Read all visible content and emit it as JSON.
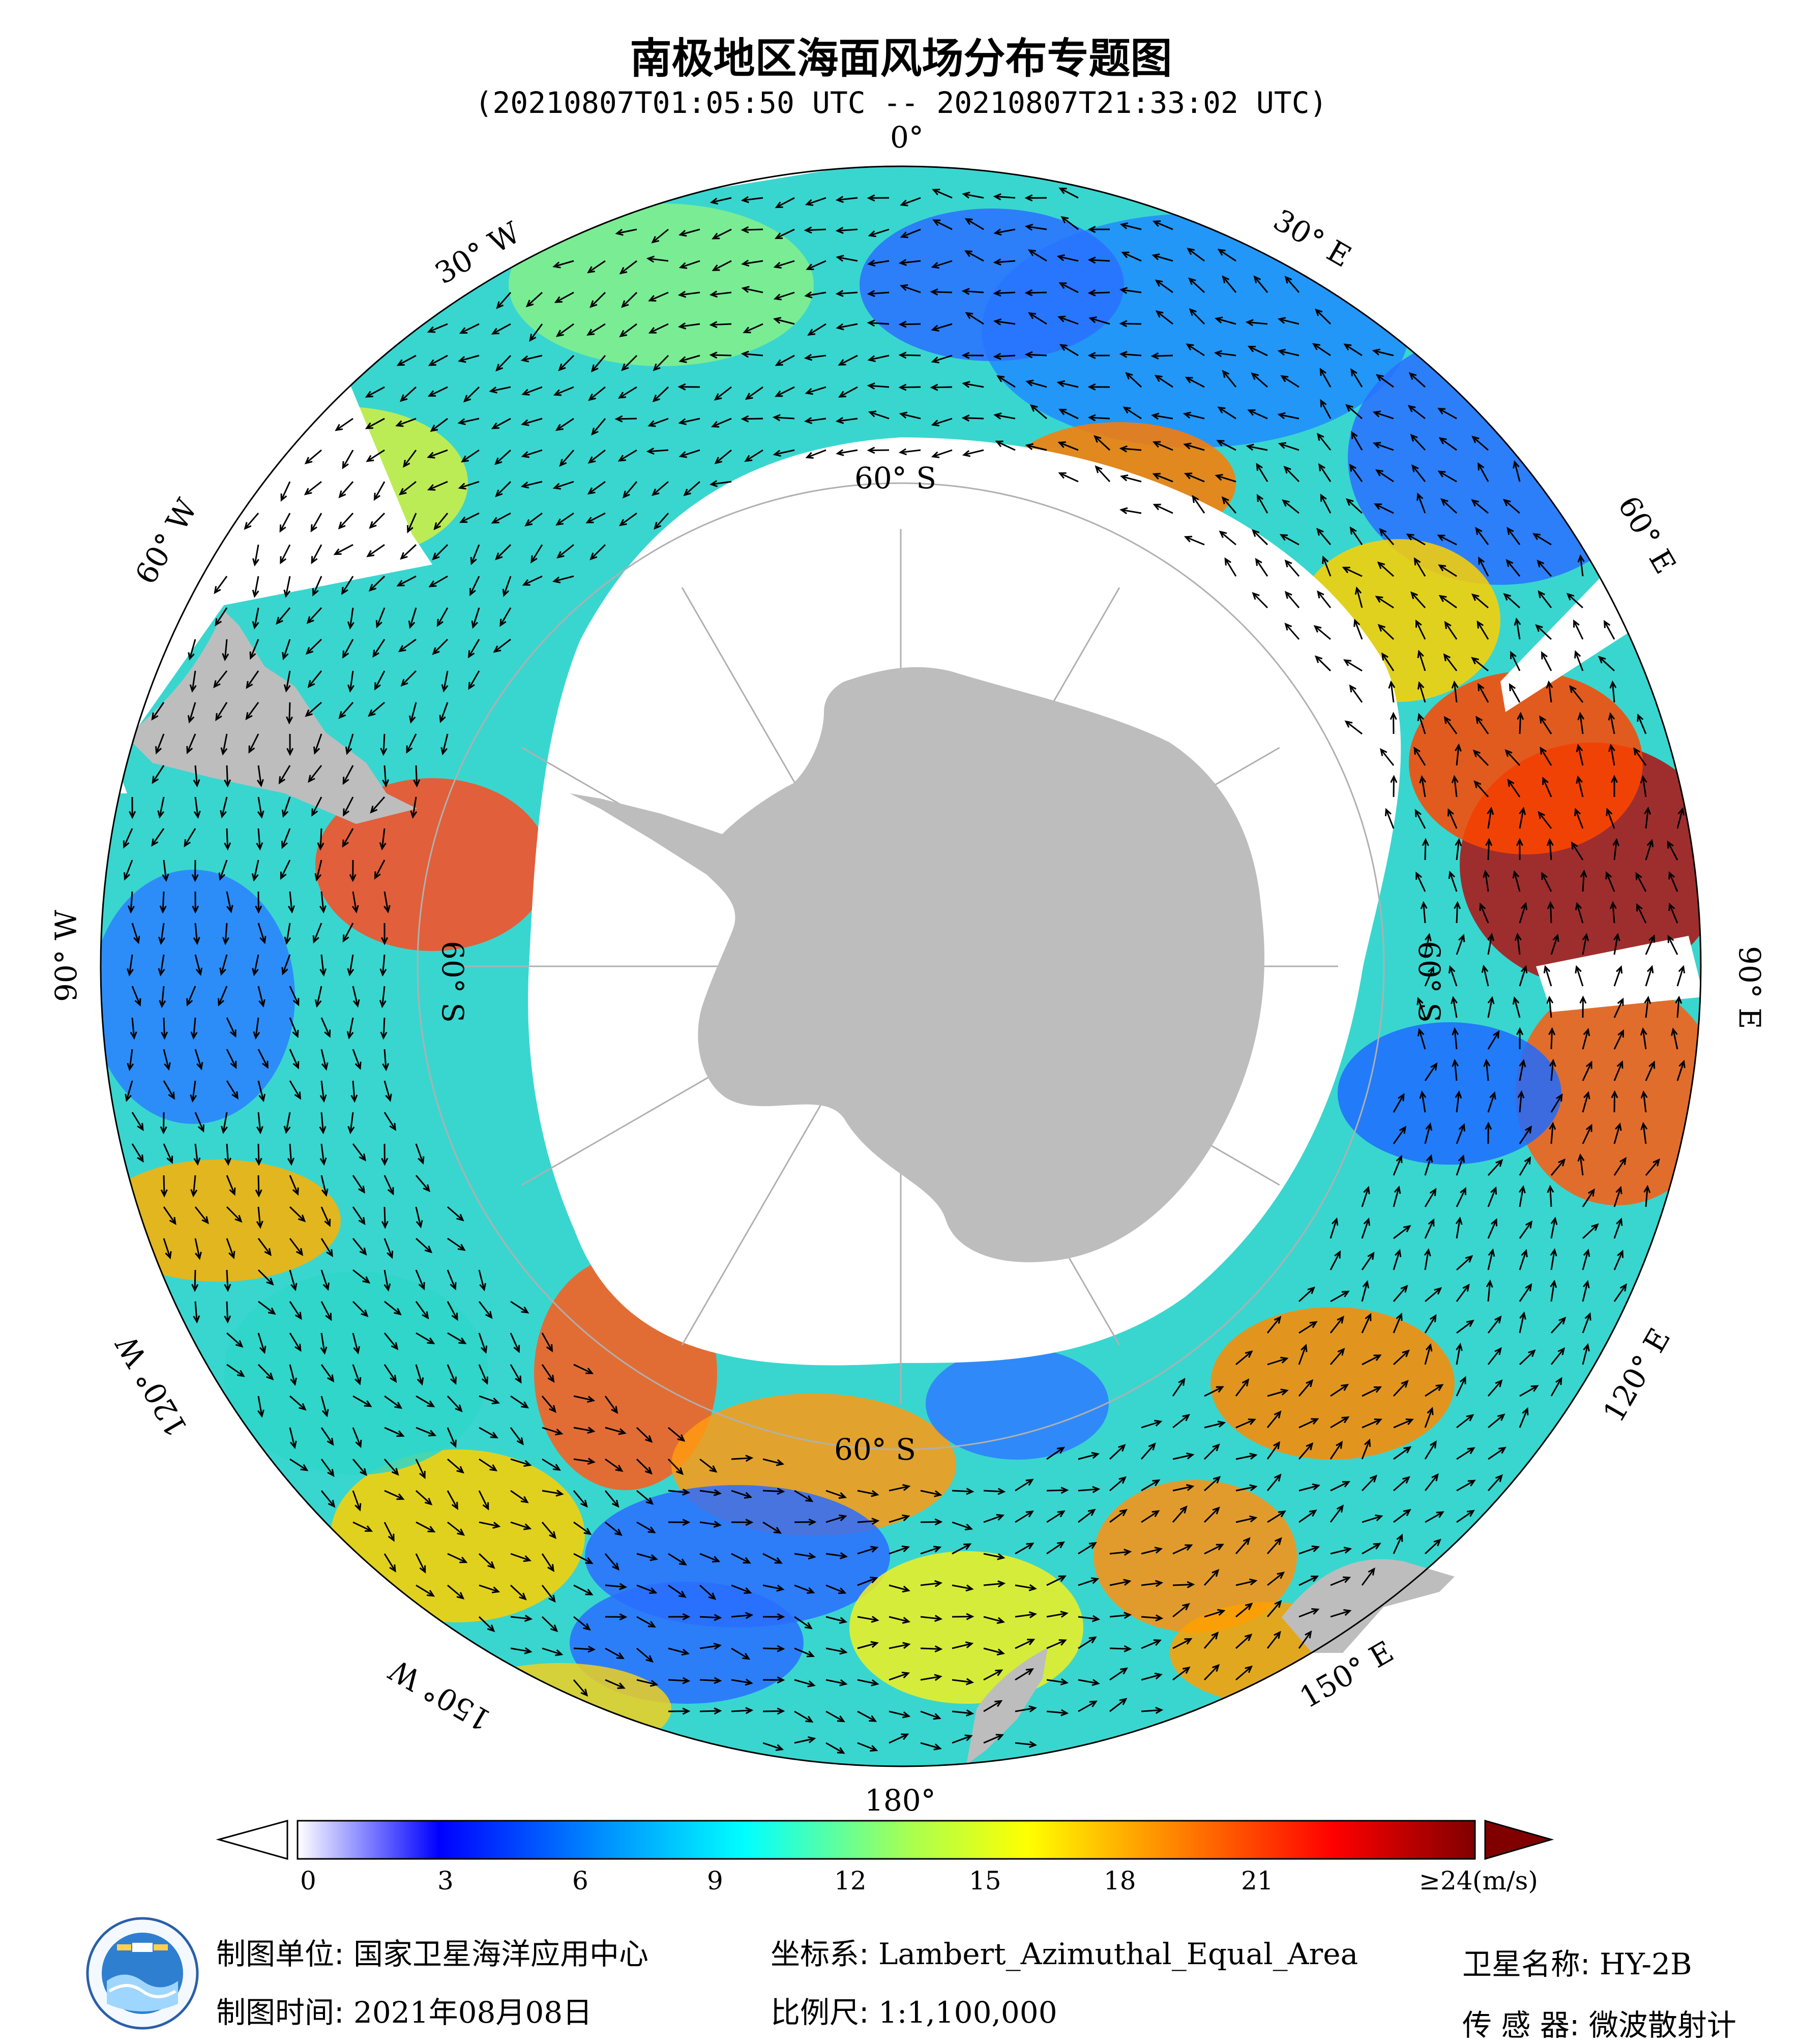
{
  "title": "南极地区海面风场分布专题图",
  "subtitle": "(20210807T01:05:50 UTC -- 20210807T21:33:02 UTC)",
  "map": {
    "longitude_labels": [
      "0°",
      "30° E",
      "60° E",
      "90° E",
      "120° E",
      "150° E",
      "180°",
      "150° W",
      "120° W",
      "90° W",
      "60° W",
      "30° W"
    ],
    "latitude_labels": [
      "60° S",
      "60° S",
      "60° S",
      "60° S"
    ],
    "colors": {
      "land": "#bdbdbd",
      "ice_mask": "#ffffff",
      "arrow": "#000000",
      "graticule": "#b0b0b0"
    }
  },
  "colorbar": {
    "ticks": [
      "0",
      "3",
      "6",
      "9",
      "12",
      "15",
      "18",
      "21"
    ],
    "max_label": "≥24",
    "unit": "(m/s)",
    "stops": [
      "#ffffff",
      "#0000ff",
      "#0090ff",
      "#00ffff",
      "#ffff00",
      "#ff8000",
      "#ff0000",
      "#800000"
    ]
  },
  "footer": {
    "unit_label": "制图单位:",
    "unit_value": "国家卫星海洋应用中心",
    "time_label": "制图时间:",
    "time_value": "2021年08月08日",
    "crs_label": "坐标系:",
    "crs_value": "Lambert_Azimuthal_Equal_Area",
    "scale_label": "比例尺:",
    "scale_value": "1:1,100,000",
    "satellite_label": "卫星名称:",
    "satellite_value": "HY-2B",
    "sensor_label": "传 感 器:",
    "sensor_value": "微波散射计"
  }
}
